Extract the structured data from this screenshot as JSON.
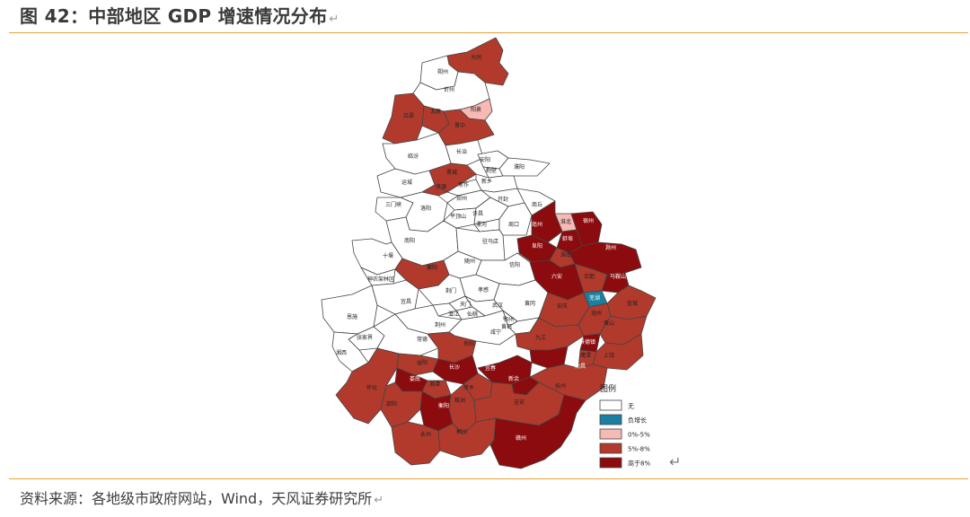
{
  "header": {
    "title": "图 42：中部地区 GDP 增速情况分布",
    "return_mark": "↵"
  },
  "source": {
    "text": "资料来源：各地级市政府网站，Wind，天风证券研究所",
    "return_mark": "↵"
  },
  "legend": {
    "title": "图例",
    "items": [
      {
        "label": "无",
        "color": "#ffffff"
      },
      {
        "label": "负增长",
        "color": "#1a7fa0"
      },
      {
        "label": "0%-5%",
        "color": "#f6b9b4"
      },
      {
        "label": "5%-8%",
        "color": "#b13a2c"
      },
      {
        "label": "高于8%",
        "color": "#8c0b0e"
      }
    ]
  },
  "colors": {
    "none": "#ffffff",
    "negative": "#1a7fa0",
    "low": "#f6b9b4",
    "mid": "#b13a2c",
    "high": "#8c0b0e",
    "border": "#444444",
    "rule": "#e8a23c"
  },
  "map_labels": [
    {
      "text": "大同",
      "cls": "mid"
    },
    {
      "text": "朔州",
      "cls": "none"
    },
    {
      "text": "忻州",
      "cls": "none"
    },
    {
      "text": "阳泉",
      "cls": "low"
    },
    {
      "text": "吕梁",
      "cls": "mid"
    },
    {
      "text": "太原",
      "cls": "mid"
    },
    {
      "text": "晋中",
      "cls": "mid"
    },
    {
      "text": "长治",
      "cls": "none"
    },
    {
      "text": "临汾",
      "cls": "none"
    },
    {
      "text": "晋城",
      "cls": "mid"
    },
    {
      "text": "安阳",
      "cls": "none"
    },
    {
      "text": "鹤壁",
      "cls": "none"
    },
    {
      "text": "濮阳",
      "cls": "none"
    },
    {
      "text": "运城",
      "cls": "none"
    },
    {
      "text": "济源",
      "cls": "mid"
    },
    {
      "text": "焦作",
      "cls": "none"
    },
    {
      "text": "新乡",
      "cls": "none"
    },
    {
      "text": "三门峡",
      "cls": "none"
    },
    {
      "text": "洛阳",
      "cls": "none"
    },
    {
      "text": "郑州",
      "cls": "none"
    },
    {
      "text": "开封",
      "cls": "none"
    },
    {
      "text": "商丘",
      "cls": "none"
    },
    {
      "text": "平顶山",
      "cls": "none"
    },
    {
      "text": "许昌",
      "cls": "none"
    },
    {
      "text": "漯河",
      "cls": "none"
    },
    {
      "text": "周口",
      "cls": "none"
    },
    {
      "text": "淮北",
      "cls": "low"
    },
    {
      "text": "宿州",
      "cls": "high"
    },
    {
      "text": "亳州",
      "cls": "high"
    },
    {
      "text": "蚌埠",
      "cls": "high"
    },
    {
      "text": "阜阳",
      "cls": "high"
    },
    {
      "text": "淮南",
      "cls": "mid"
    },
    {
      "text": "滁州",
      "cls": "high"
    },
    {
      "text": "南阳",
      "cls": "none"
    },
    {
      "text": "驻马店",
      "cls": "none"
    },
    {
      "text": "十堰",
      "cls": "none"
    },
    {
      "text": "襄阳",
      "cls": "mid"
    },
    {
      "text": "随州",
      "cls": "none"
    },
    {
      "text": "信阳",
      "cls": "none"
    },
    {
      "text": "六安",
      "cls": "high"
    },
    {
      "text": "合肥",
      "cls": "mid"
    },
    {
      "text": "马鞍山",
      "cls": "high"
    },
    {
      "text": "神农架林区",
      "cls": "none"
    },
    {
      "text": "荆门",
      "cls": "none"
    },
    {
      "text": "孝感",
      "cls": "none"
    },
    {
      "text": "芜湖",
      "cls": "negative"
    },
    {
      "text": "宜昌",
      "cls": "none"
    },
    {
      "text": "天门",
      "cls": "none"
    },
    {
      "text": "武汉",
      "cls": "none"
    },
    {
      "text": "黄冈",
      "cls": "none"
    },
    {
      "text": "安庆",
      "cls": "mid"
    },
    {
      "text": "宣城",
      "cls": "mid"
    },
    {
      "text": "潜江",
      "cls": "none"
    },
    {
      "text": "仙桃",
      "cls": "none"
    },
    {
      "text": "鄂州",
      "cls": "none"
    },
    {
      "text": "池州",
      "cls": "mid"
    },
    {
      "text": "恩施",
      "cls": "none"
    },
    {
      "text": "荆州",
      "cls": "none"
    },
    {
      "text": "黄石",
      "cls": "none"
    },
    {
      "text": "黄山",
      "cls": "mid"
    },
    {
      "text": "咸宁",
      "cls": "none"
    },
    {
      "text": "九江",
      "cls": "mid"
    },
    {
      "text": "张家界",
      "cls": "none"
    },
    {
      "text": "常德",
      "cls": "none"
    },
    {
      "text": "岳阳",
      "cls": "mid"
    },
    {
      "text": "景德镇",
      "cls": "high"
    },
    {
      "text": "湘西",
      "cls": "none"
    },
    {
      "text": "益阳",
      "cls": "mid"
    },
    {
      "text": "南昌",
      "cls": "high"
    },
    {
      "text": "上饶",
      "cls": "mid"
    },
    {
      "text": "鹰潭",
      "cls": "mid"
    },
    {
      "text": "长沙",
      "cls": "high"
    },
    {
      "text": "宜春",
      "cls": "high"
    },
    {
      "text": "新余",
      "cls": "high"
    },
    {
      "text": "抚州",
      "cls": "mid"
    },
    {
      "text": "怀化",
      "cls": "mid"
    },
    {
      "text": "娄底",
      "cls": "high"
    },
    {
      "text": "湘潭",
      "cls": "mid"
    },
    {
      "text": "萍乡",
      "cls": "mid"
    },
    {
      "text": "邵阳",
      "cls": "mid"
    },
    {
      "text": "株洲",
      "cls": "mid"
    },
    {
      "text": "衡阳",
      "cls": "high"
    },
    {
      "text": "吉安",
      "cls": "mid"
    },
    {
      "text": "永州",
      "cls": "mid"
    },
    {
      "text": "郴州",
      "cls": "mid"
    },
    {
      "text": "赣州",
      "cls": "high"
    }
  ]
}
